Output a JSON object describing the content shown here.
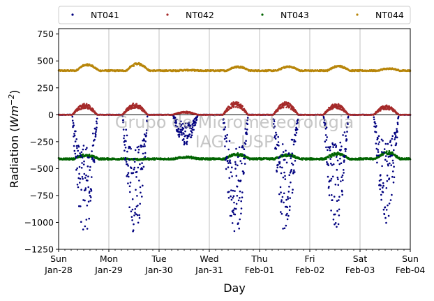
{
  "chart_data": {
    "type": "scatter",
    "title": "",
    "xlabel": "Day",
    "ylabel": "Radiation (Wm⁻²)",
    "ylabel_main": "Radiation (",
    "ylabel_unit": "Wm",
    "ylabel_exp": "−2",
    "ylabel_close": ")",
    "ylim": [
      -1250,
      800
    ],
    "yticks": [
      -1250,
      -1000,
      -750,
      -500,
      -250,
      0,
      250,
      500,
      750
    ],
    "ytick_labels": [
      "−1250",
      "−1000",
      "−750",
      "−500",
      "−250",
      "0",
      "250",
      "500",
      "750"
    ],
    "xlim": [
      0,
      7
    ],
    "xticks": [
      {
        "day": 0,
        "line1": "Sun",
        "line2": "Jan-28"
      },
      {
        "day": 1,
        "line1": "Mon",
        "line2": "Jan-29"
      },
      {
        "day": 2,
        "line1": "Tue",
        "line2": "Jan-30"
      },
      {
        "day": 3,
        "line1": "Wed",
        "line2": "Jan-31"
      },
      {
        "day": 4,
        "line1": "Thu",
        "line2": "Feb-01"
      },
      {
        "day": 5,
        "line1": "Fri",
        "line2": "Feb-02"
      },
      {
        "day": 6,
        "line1": "Sat",
        "line2": "Feb-03"
      },
      {
        "day": 7,
        "line1": "Sun",
        "line2": "Feb-04"
      }
    ],
    "grid": "x-only",
    "legend_placement": "top, outside plot",
    "watermark_line1": "Grupo de Micrometeorologia",
    "watermark_line2": "IAG - USP",
    "series": [
      {
        "name": "NT041",
        "color": "#00007f",
        "baseline": 0,
        "daily_minimum": [
          -1140,
          -1150,
          -280,
          -1180,
          -1160,
          -1070,
          -1010
        ],
        "daylight_hours": [
          6.5,
          18.5
        ]
      },
      {
        "name": "NT042",
        "color": "#a52a2a",
        "baseline": 0,
        "daily_maximum": [
          105,
          110,
          30,
          125,
          120,
          105,
          90
        ],
        "daylight_hours": [
          6.5,
          18.5
        ]
      },
      {
        "name": "NT043",
        "color": "#006400",
        "baseline": -410,
        "daily_peak": [
          -370,
          -415,
          -390,
          -360,
          -370,
          -355,
          -340
        ]
      },
      {
        "name": "NT044",
        "color": "#b8860b",
        "baseline": 410,
        "daily_peak": [
          470,
          480,
          415,
          450,
          450,
          455,
          430
        ]
      }
    ]
  }
}
